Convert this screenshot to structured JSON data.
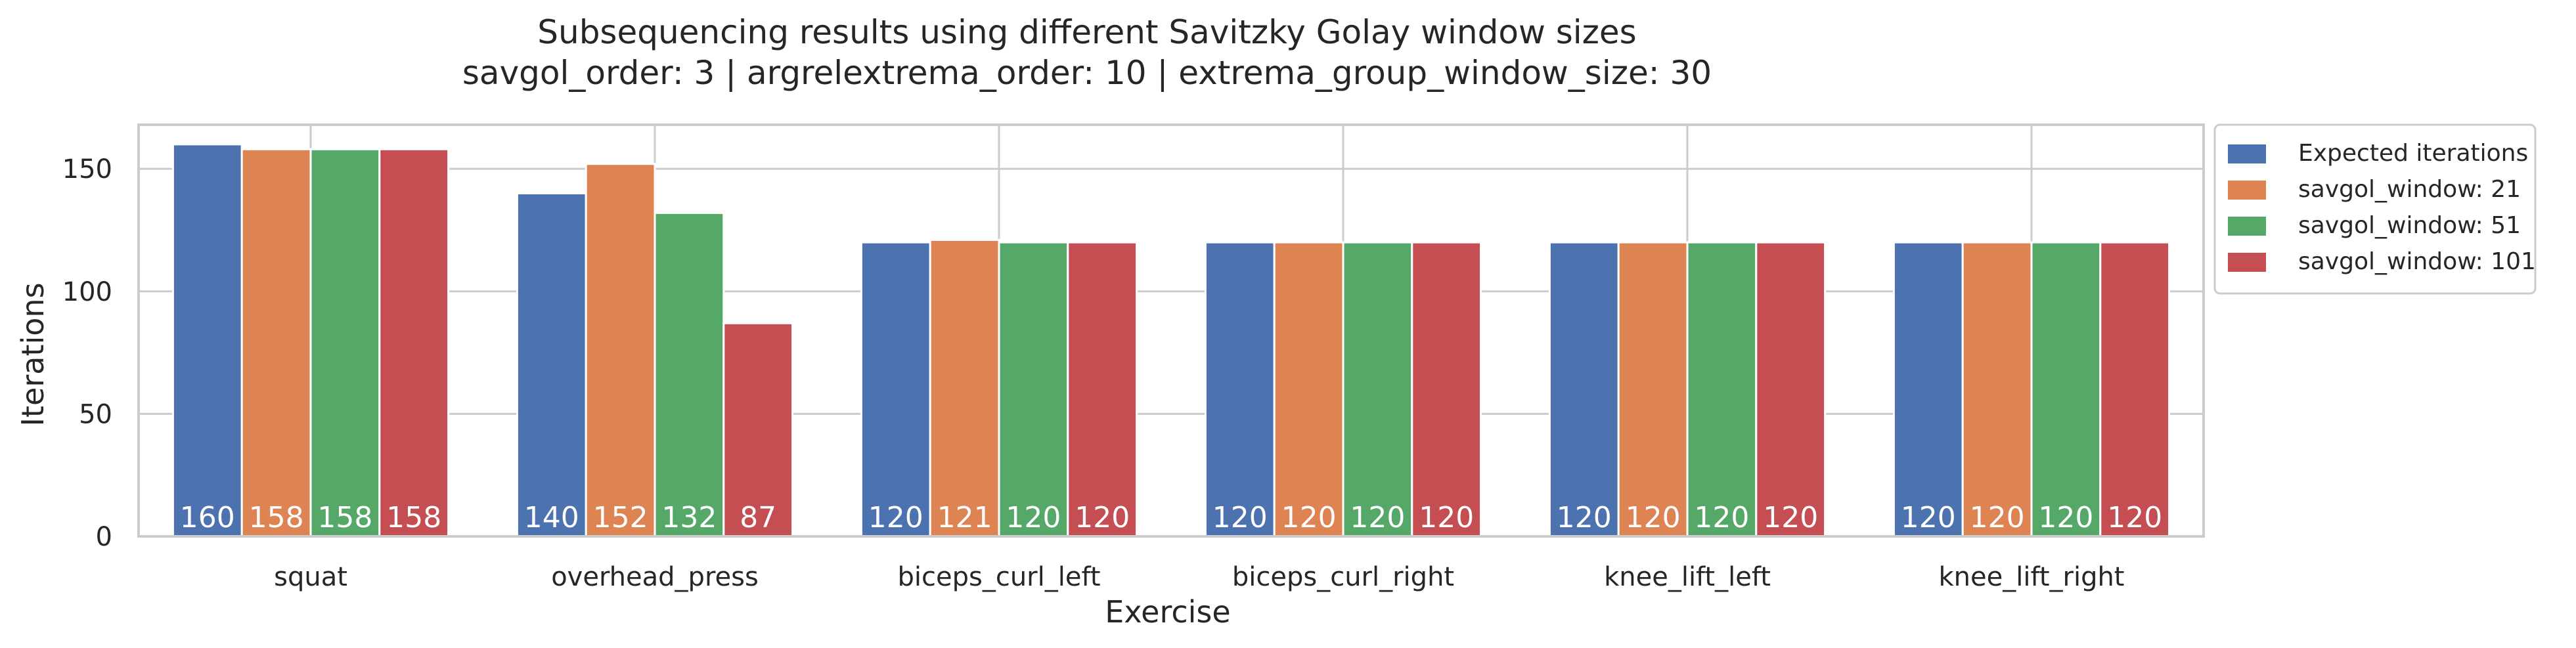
{
  "chart_data": {
    "type": "bar",
    "title": "Subsequencing results using different Savitzky Golay window sizes",
    "subtitle": "savgol_order: 3  |  argrelextrema_order: 10  |  extrema_group_window_size: 30",
    "xlabel": "Exercise",
    "ylabel": "Iterations",
    "categories": [
      "squat",
      "overhead_press",
      "biceps_curl_left",
      "biceps_curl_right",
      "knee_lift_left",
      "knee_lift_right"
    ],
    "series": [
      {
        "name": "Expected iterations",
        "color": "#4c72b0",
        "values": [
          160,
          140,
          120,
          120,
          120,
          120
        ]
      },
      {
        "name": "savgol_window: 21",
        "color": "#dd8452",
        "values": [
          158,
          152,
          121,
          120,
          120,
          120
        ]
      },
      {
        "name": "savgol_window: 51",
        "color": "#55a868",
        "values": [
          158,
          132,
          120,
          120,
          120,
          120
        ]
      },
      {
        "name": "savgol_window: 101",
        "color": "#c44e52",
        "values": [
          158,
          87,
          120,
          120,
          120,
          120
        ]
      }
    ],
    "ylim": [
      0,
      168
    ],
    "yticks": [
      0,
      50,
      100,
      150
    ],
    "grid": true,
    "legend_position": "outside right, top",
    "data_labels": true
  }
}
